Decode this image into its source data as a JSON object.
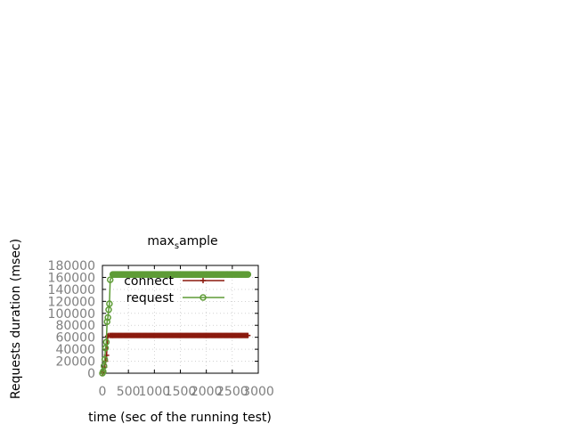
{
  "chart_data": {
    "type": "line",
    "title": "max_sample",
    "title_parts": {
      "base": "max",
      "sub": "s",
      "rest": "ample"
    },
    "xlabel": "time (sec of the running test)",
    "ylabel": "Requests duration (msec)",
    "xlim": [
      0,
      3000
    ],
    "ylim": [
      0,
      180000
    ],
    "x_ticks": [
      0,
      500,
      1000,
      1500,
      2000,
      2500,
      3000
    ],
    "x_tick_labels": [
      "0",
      "500",
      "1000",
      "1500",
      "2000",
      "2500",
      "3000"
    ],
    "y_ticks": [
      0,
      20000,
      40000,
      60000,
      80000,
      100000,
      120000,
      140000,
      160000,
      180000
    ],
    "y_tick_labels": [
      "0",
      "20000",
      "40000",
      "60000",
      "80000",
      "100000",
      "120000",
      "140000",
      "160000",
      "180000"
    ],
    "grid": true,
    "legend_position": "top-right-inside",
    "series": [
      {
        "name": "connect",
        "color": "#8b1a0e",
        "marker": "plus",
        "x": [
          0,
          20,
          40,
          60,
          80,
          100,
          120,
          150,
          200,
          500,
          1000,
          1500,
          2000,
          2500,
          2800
        ],
        "y": [
          0,
          3000,
          10000,
          20000,
          30000,
          62000,
          63000,
          63000,
          63000,
          63000,
          63000,
          63000,
          63000,
          63000,
          63000
        ]
      },
      {
        "name": "request",
        "color": "#5e9c36",
        "marker": "circle",
        "x": [
          0,
          15,
          30,
          45,
          60,
          75,
          90,
          105,
          120,
          135,
          150,
          200,
          500,
          1000,
          1500,
          2000,
          2500,
          2800
        ],
        "y": [
          0,
          3000,
          12000,
          23000,
          42000,
          52000,
          86000,
          93000,
          106000,
          116000,
          156000,
          165000,
          165000,
          165000,
          165000,
          165000,
          165000,
          165000
        ]
      }
    ]
  }
}
